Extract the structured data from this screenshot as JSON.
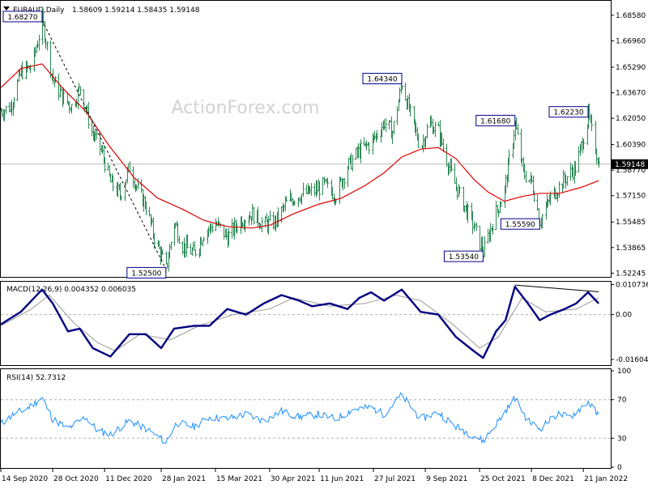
{
  "chart_data": [
    {
      "type": "candlestick",
      "title": "EURAUD,Daily",
      "ohlc_header": "1.58609 1.59214 1.58435 1.59148",
      "watermark": "ActionForex.com",
      "last_price": 1.59148,
      "last_price_label": "1.59148",
      "ylim": [
        1.5211,
        1.6924
      ],
      "yticks": [
        "1.68580",
        "1.66960",
        "1.65290",
        "1.63670",
        "1.62050",
        "1.60390",
        "1.58770",
        "1.57150",
        "1.55485",
        "1.53865",
        "1.52245"
      ],
      "xticks": [
        "14 Sep 2020",
        "28 Oct 2020",
        "11 Dec 2020",
        "28 Jan 2021",
        "15 Mar 2021",
        "30 Apr 2021",
        "11 Jun 2021",
        "27 Jul 2021",
        "9 Sep 2021",
        "25 Oct 2021",
        "8 Dec 2021",
        "21 Jan 2022"
      ],
      "annotations": [
        {
          "label": "1.68270",
          "value": 1.6827,
          "date": "2020-10-19"
        },
        {
          "label": "1.52500",
          "value": 1.525,
          "date": "2021-02-01"
        },
        {
          "label": "1.64340",
          "value": 1.6434,
          "date": "2021-08-20"
        },
        {
          "label": "1.53540",
          "value": 1.5354,
          "date": "2021-10-28"
        },
        {
          "label": "1.61680",
          "value": 1.6168,
          "date": "2021-11-24"
        },
        {
          "label": "1.55590",
          "value": 1.5559,
          "date": "2021-12-15"
        },
        {
          "label": "1.62230",
          "value": 1.6223,
          "date": "2022-01-25"
        }
      ],
      "trendline": {
        "from": {
          "date": "2020-10-19",
          "value": 1.6827
        },
        "to": {
          "date": "2021-02-01",
          "value": 1.525
        }
      },
      "ma_series": {
        "name": "moving average",
        "color": "#e00000",
        "points": [
          [
            "2020-09-14",
            1.64
          ],
          [
            "2020-10-01",
            1.652
          ],
          [
            "2020-10-19",
            1.655
          ],
          [
            "2020-11-05",
            1.64
          ],
          [
            "2020-11-25",
            1.625
          ],
          [
            "2020-12-15",
            1.603
          ],
          [
            "2021-01-05",
            1.583
          ],
          [
            "2021-01-25",
            1.57
          ],
          [
            "2021-02-15",
            1.563
          ],
          [
            "2021-03-05",
            1.556
          ],
          [
            "2021-03-25",
            1.552
          ],
          [
            "2021-04-15",
            1.551
          ],
          [
            "2021-05-01",
            1.553
          ],
          [
            "2021-05-20",
            1.56
          ],
          [
            "2021-06-10",
            1.566
          ],
          [
            "2021-06-30",
            1.57
          ],
          [
            "2021-07-20",
            1.578
          ],
          [
            "2021-08-05",
            1.586
          ],
          [
            "2021-08-20",
            1.596
          ],
          [
            "2021-09-05",
            1.601
          ],
          [
            "2021-09-20",
            1.602
          ],
          [
            "2021-10-05",
            1.595
          ],
          [
            "2021-10-20",
            1.582
          ],
          [
            "2021-11-01",
            1.574
          ],
          [
            "2021-11-15",
            1.568
          ],
          [
            "2021-11-30",
            1.571
          ],
          [
            "2021-12-15",
            1.573
          ],
          [
            "2022-01-01",
            1.573
          ],
          [
            "2022-01-20",
            1.577
          ],
          [
            "2022-02-03",
            1.581
          ]
        ]
      },
      "price_path": [
        [
          "2020-09-14",
          1.625
        ],
        [
          "2020-09-22",
          1.628
        ],
        [
          "2020-10-01",
          1.65
        ],
        [
          "2020-10-10",
          1.653
        ],
        [
          "2020-10-19",
          1.6827
        ],
        [
          "2020-10-28",
          1.645
        ],
        [
          "2020-11-05",
          1.634
        ],
        [
          "2020-11-13",
          1.628
        ],
        [
          "2020-11-20",
          1.64
        ],
        [
          "2020-11-30",
          1.612
        ],
        [
          "2020-12-08",
          1.6
        ],
        [
          "2020-12-16",
          1.58
        ],
        [
          "2020-12-24",
          1.572
        ],
        [
          "2021-01-01",
          1.59
        ],
        [
          "2021-01-08",
          1.575
        ],
        [
          "2021-01-15",
          1.565
        ],
        [
          "2021-01-22",
          1.545
        ],
        [
          "2021-02-01",
          1.525
        ],
        [
          "2021-02-08",
          1.555
        ],
        [
          "2021-02-15",
          1.54
        ],
        [
          "2021-02-25",
          1.535
        ],
        [
          "2021-03-05",
          1.548
        ],
        [
          "2021-03-15",
          1.554
        ],
        [
          "2021-03-25",
          1.545
        ],
        [
          "2021-04-05",
          1.556
        ],
        [
          "2021-04-15",
          1.56
        ],
        [
          "2021-04-25",
          1.553
        ],
        [
          "2021-05-05",
          1.555
        ],
        [
          "2021-05-15",
          1.568
        ],
        [
          "2021-05-25",
          1.572
        ],
        [
          "2021-06-05",
          1.574
        ],
        [
          "2021-06-15",
          1.578
        ],
        [
          "2021-06-25",
          1.572
        ],
        [
          "2021-07-05",
          1.59
        ],
        [
          "2021-07-15",
          1.6
        ],
        [
          "2021-07-25",
          1.605
        ],
        [
          "2021-08-05",
          1.618
        ],
        [
          "2021-08-12",
          1.612
        ],
        [
          "2021-08-20",
          1.6434
        ],
        [
          "2021-08-28",
          1.62
        ],
        [
          "2021-09-05",
          1.602
        ],
        [
          "2021-09-12",
          1.618
        ],
        [
          "2021-09-20",
          1.612
        ],
        [
          "2021-10-01",
          1.585
        ],
        [
          "2021-10-10",
          1.568
        ],
        [
          "2021-10-20",
          1.552
        ],
        [
          "2021-10-28",
          1.5354
        ],
        [
          "2021-11-05",
          1.555
        ],
        [
          "2021-11-15",
          1.575
        ],
        [
          "2021-11-24",
          1.6168
        ],
        [
          "2021-12-01",
          1.586
        ],
        [
          "2021-12-08",
          1.58
        ],
        [
          "2021-12-15",
          1.5559
        ],
        [
          "2021-12-24",
          1.57
        ],
        [
          "2022-01-05",
          1.582
        ],
        [
          "2022-01-15",
          1.59
        ],
        [
          "2022-01-25",
          1.6223
        ],
        [
          "2022-02-03",
          1.5915
        ]
      ]
    },
    {
      "type": "line",
      "title": "MACD(12,26,9) 0.004352 0.006035",
      "ylim": [
        -0.0175,
        0.0112
      ],
      "yticks": [
        "0.010736",
        "0.00",
        "-0.016046"
      ],
      "series": [
        {
          "name": "MACD",
          "color": "#000080",
          "points": [
            [
              "2020-09-14",
              -0.0035
            ],
            [
              "2020-10-01",
              0.001
            ],
            [
              "2020-10-19",
              0.009
            ],
            [
              "2020-10-28",
              0.004
            ],
            [
              "2020-11-10",
              -0.006
            ],
            [
              "2020-11-20",
              -0.005
            ],
            [
              "2020-12-01",
              -0.012
            ],
            [
              "2020-12-16",
              -0.015
            ],
            [
              "2021-01-01",
              -0.007
            ],
            [
              "2021-01-15",
              -0.007
            ],
            [
              "2021-01-28",
              -0.012
            ],
            [
              "2021-02-08",
              -0.005
            ],
            [
              "2021-02-25",
              -0.004
            ],
            [
              "2021-03-10",
              -0.004
            ],
            [
              "2021-03-25",
              0.002
            ],
            [
              "2021-04-10",
              0.0
            ],
            [
              "2021-04-25",
              0.004
            ],
            [
              "2021-05-10",
              0.007
            ],
            [
              "2021-05-25",
              0.005
            ],
            [
              "2021-06-05",
              0.003
            ],
            [
              "2021-06-20",
              0.004
            ],
            [
              "2021-07-05",
              0.002
            ],
            [
              "2021-07-15",
              0.006
            ],
            [
              "2021-07-25",
              0.008
            ],
            [
              "2021-08-05",
              0.005
            ],
            [
              "2021-08-20",
              0.009
            ],
            [
              "2021-09-05",
              0.001
            ],
            [
              "2021-09-20",
              0.0
            ],
            [
              "2021-10-05",
              -0.008
            ],
            [
              "2021-10-20",
              -0.013
            ],
            [
              "2021-10-28",
              -0.0155
            ],
            [
              "2021-11-08",
              -0.006
            ],
            [
              "2021-11-16",
              -0.002
            ],
            [
              "2021-11-24",
              0.01
            ],
            [
              "2021-12-05",
              0.004
            ],
            [
              "2021-12-15",
              -0.002
            ],
            [
              "2021-12-24",
              0.0
            ],
            [
              "2022-01-05",
              0.002
            ],
            [
              "2022-01-15",
              0.004
            ],
            [
              "2022-01-25",
              0.008
            ],
            [
              "2022-02-03",
              0.004
            ]
          ]
        },
        {
          "name": "Signal",
          "color": "#9a9a9a",
          "points": [
            [
              "2020-09-14",
              -0.004
            ],
            [
              "2020-10-10",
              0.002
            ],
            [
              "2020-10-25",
              0.007
            ],
            [
              "2020-11-15",
              -0.003
            ],
            [
              "2020-12-05",
              -0.01
            ],
            [
              "2020-12-20",
              -0.013
            ],
            [
              "2021-01-10",
              -0.007
            ],
            [
              "2021-02-05",
              -0.009
            ],
            [
              "2021-03-01",
              -0.004
            ],
            [
              "2021-03-30",
              0.0
            ],
            [
              "2021-04-30",
              0.002
            ],
            [
              "2021-05-20",
              0.006
            ],
            [
              "2021-06-20",
              0.003
            ],
            [
              "2021-07-20",
              0.004
            ],
            [
              "2021-08-15",
              0.007
            ],
            [
              "2021-09-05",
              0.005
            ],
            [
              "2021-10-01",
              -0.003
            ],
            [
              "2021-10-25",
              -0.012
            ],
            [
              "2021-11-10",
              -0.008
            ],
            [
              "2021-11-30",
              0.006
            ],
            [
              "2021-12-20",
              0.001
            ],
            [
              "2022-01-15",
              0.002
            ],
            [
              "2022-02-03",
              0.006
            ]
          ]
        }
      ],
      "divergence_line": {
        "from": {
          "date": "2021-11-24",
          "value": 0.0106
        },
        "to": {
          "date": "2022-02-03",
          "value": 0.0082
        }
      },
      "zero_line": 0.0
    },
    {
      "type": "line",
      "title": "RSI(14) 52.7312",
      "ylim": [
        0,
        100
      ],
      "yticks": [
        "100",
        "70",
        "30",
        "0"
      ],
      "levels": [
        70,
        30
      ],
      "series": [
        {
          "name": "RSI",
          "color": "#1e90ff",
          "points": [
            [
              "2020-09-14",
              45
            ],
            [
              "2020-09-25",
              55
            ],
            [
              "2020-10-05",
              60
            ],
            [
              "2020-10-19",
              72
            ],
            [
              "2020-10-28",
              50
            ],
            [
              "2020-11-10",
              40
            ],
            [
              "2020-11-25",
              52
            ],
            [
              "2020-12-05",
              38
            ],
            [
              "2020-12-16",
              34
            ],
            [
              "2021-01-01",
              48
            ],
            [
              "2021-01-15",
              40
            ],
            [
              "2021-02-01",
              26
            ],
            [
              "2021-02-10",
              46
            ],
            [
              "2021-02-25",
              42
            ],
            [
              "2021-03-10",
              52
            ],
            [
              "2021-03-25",
              50
            ],
            [
              "2021-04-10",
              55
            ],
            [
              "2021-04-25",
              48
            ],
            [
              "2021-05-10",
              58
            ],
            [
              "2021-05-25",
              52
            ],
            [
              "2021-06-10",
              55
            ],
            [
              "2021-06-25",
              50
            ],
            [
              "2021-07-10",
              60
            ],
            [
              "2021-07-25",
              62
            ],
            [
              "2021-08-05",
              55
            ],
            [
              "2021-08-20",
              75
            ],
            [
              "2021-09-05",
              50
            ],
            [
              "2021-09-20",
              57
            ],
            [
              "2021-10-05",
              42
            ],
            [
              "2021-10-20",
              33
            ],
            [
              "2021-10-28",
              27
            ],
            [
              "2021-11-10",
              48
            ],
            [
              "2021-11-24",
              72
            ],
            [
              "2021-12-05",
              48
            ],
            [
              "2021-12-15",
              40
            ],
            [
              "2021-12-30",
              55
            ],
            [
              "2022-01-10",
              52
            ],
            [
              "2022-01-25",
              68
            ],
            [
              "2022-02-03",
              52.7
            ]
          ]
        }
      ]
    }
  ],
  "x_date_range": [
    "2020-09-14",
    "2022-02-05"
  ]
}
